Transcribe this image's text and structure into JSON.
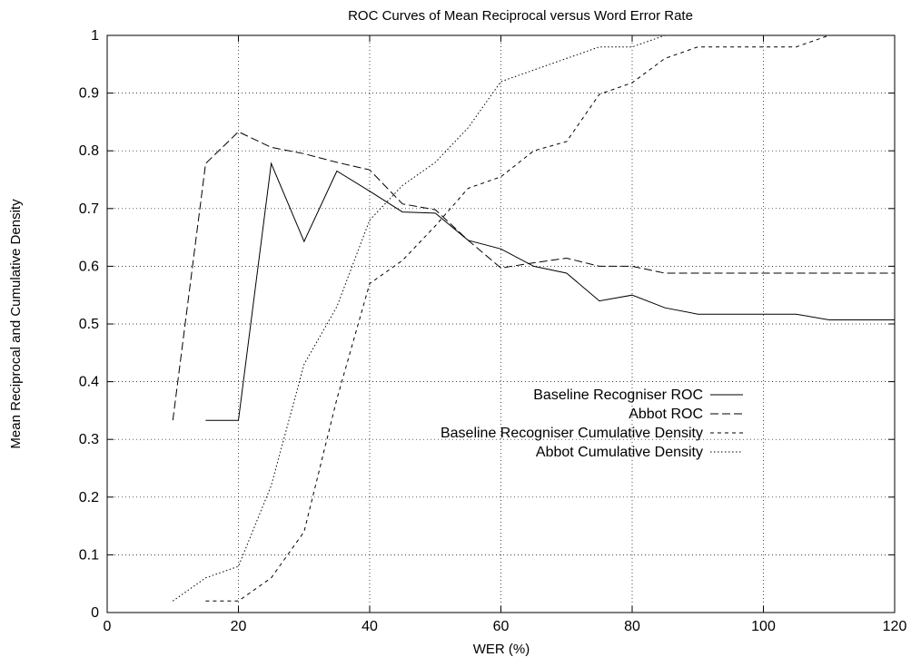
{
  "chart_data": {
    "type": "line",
    "title": "ROC Curves of Mean Reciprocal versus Word Error Rate",
    "xlabel": "WER (%)",
    "ylabel": "Mean Reciprocal and Cumulative Density",
    "xlim": [
      0,
      120
    ],
    "ylim": [
      0,
      1
    ],
    "xticks": [
      "0",
      "20",
      "40",
      "60",
      "80",
      "100",
      "120"
    ],
    "yticks": [
      "0",
      "0.1",
      "0.2",
      "0.3",
      "0.4",
      "0.5",
      "0.6",
      "0.7",
      "0.8",
      "0.9",
      "1"
    ],
    "grid": true,
    "legend_position": "center-right",
    "series": [
      {
        "name": "Baseline Recogniser ROC",
        "dash": "solid",
        "x": [
          15,
          20,
          25,
          30,
          35,
          40,
          45,
          50,
          55,
          60,
          65,
          70,
          75,
          80,
          85,
          90,
          95,
          100,
          105,
          110,
          115,
          120
        ],
        "y": [
          0.333,
          0.333,
          0.778,
          0.643,
          0.765,
          0.73,
          0.694,
          0.692,
          0.645,
          0.63,
          0.6,
          0.588,
          0.54,
          0.55,
          0.528,
          0.517,
          0.517,
          0.517,
          0.517,
          0.507,
          0.507,
          0.507
        ]
      },
      {
        "name": "Abbot ROC",
        "dash": "long-dash",
        "x": [
          10,
          15,
          20,
          25,
          30,
          35,
          40,
          45,
          50,
          55,
          60,
          65,
          70,
          75,
          80,
          85,
          90,
          95,
          100,
          105,
          110,
          115,
          120
        ],
        "y": [
          0.333,
          0.778,
          0.833,
          0.806,
          0.795,
          0.78,
          0.767,
          0.708,
          0.698,
          0.645,
          0.597,
          0.606,
          0.614,
          0.6,
          0.6,
          0.588,
          0.588,
          0.588,
          0.588,
          0.588,
          0.588,
          0.588,
          0.588
        ]
      },
      {
        "name": "Baseline Recogniser Cumulative Density",
        "dash": "short-dash",
        "x": [
          15,
          20,
          25,
          30,
          35,
          40,
          45,
          50,
          55,
          60,
          65,
          70,
          75,
          80,
          85,
          90,
          95,
          100,
          105,
          110,
          115,
          120
        ],
        "y": [
          0.02,
          0.02,
          0.06,
          0.14,
          0.37,
          0.57,
          0.61,
          0.67,
          0.735,
          0.755,
          0.8,
          0.816,
          0.898,
          0.918,
          0.96,
          0.98,
          0.98,
          0.98,
          0.98,
          1.0,
          1.0,
          1.0
        ]
      },
      {
        "name": "Abbot Cumulative Density",
        "dash": "dotted",
        "x": [
          10,
          15,
          20,
          25,
          30,
          35,
          40,
          45,
          50,
          55,
          60,
          65,
          70,
          75,
          80,
          85,
          90,
          95,
          100,
          105,
          110,
          115,
          120
        ],
        "y": [
          0.02,
          0.06,
          0.08,
          0.22,
          0.43,
          0.53,
          0.68,
          0.74,
          0.78,
          0.84,
          0.92,
          0.94,
          0.96,
          0.98,
          0.98,
          1.0,
          1.0,
          1.0,
          1.0,
          1.0,
          1.0,
          1.0,
          1.0
        ]
      }
    ]
  }
}
